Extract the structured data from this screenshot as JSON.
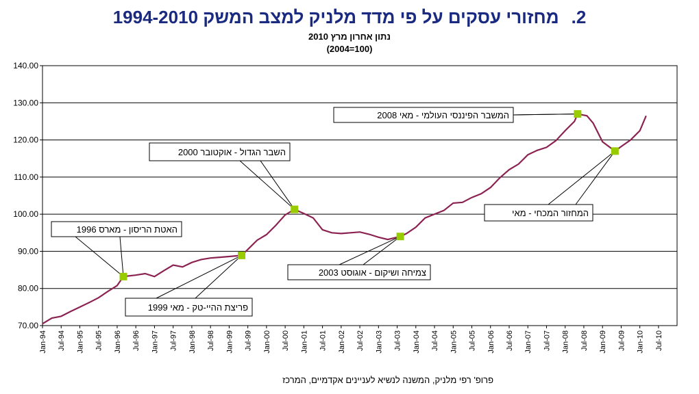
{
  "header": {
    "number": "2.",
    "title": "מחזורי עסקים על פי מדד מלניק למצב המשק 1994-2010",
    "subtitle1": "נתון אחרון מרץ 2010",
    "subtitle2": "(2004=100)"
  },
  "footer": {
    "credit": "פרופ' רפי מלניק, המשנה לנשיא לעניינים אקדמיים, המרכז"
  },
  "chart_data": {
    "type": "line",
    "ylim": [
      70,
      140
    ],
    "yticks": [
      "70.00",
      "80.00",
      "90.00",
      "100.00",
      "110.00",
      "120.00",
      "130.00",
      "140.00"
    ],
    "xticks": [
      "Jan-94",
      "Jul-94",
      "Jan-95",
      "Jul-95",
      "Jan-96",
      "Jul-96",
      "Jan-97",
      "Jul-97",
      "Jan-98",
      "Jul-98",
      "Jan-99",
      "Jul-99",
      "Jan-00",
      "Jul-00",
      "Jan-01",
      "Jul-01",
      "Jan-02",
      "Jul-02",
      "Jan-03",
      "Jul-03",
      "Jan-04",
      "Jul-04",
      "Jan-05",
      "Jul-05",
      "Jan-06",
      "Jul-06",
      "Jan-07",
      "Jul-07",
      "Jan-08",
      "Jul-08",
      "Jan-09",
      "Jul-09",
      "Jan-10",
      "Jul-10"
    ],
    "line_color": "#8b2252",
    "marker_color": "#99cc00",
    "points": [
      [
        "Jan-94",
        70.5
      ],
      [
        "Apr-94",
        72.0
      ],
      [
        "Jul-94",
        72.5
      ],
      [
        "Oct-94",
        73.8
      ],
      [
        "Jan-95",
        75.0
      ],
      [
        "Apr-95",
        76.2
      ],
      [
        "Jul-95",
        77.5
      ],
      [
        "Oct-95",
        79.2
      ],
      [
        "Jan-96",
        80.8
      ],
      [
        "Mar-96",
        83.2
      ],
      [
        "Jul-96",
        83.6
      ],
      [
        "Oct-96",
        84.0
      ],
      [
        "Jan-97",
        83.2
      ],
      [
        "Apr-97",
        84.8
      ],
      [
        "Jul-97",
        86.3
      ],
      [
        "Oct-97",
        85.8
      ],
      [
        "Jan-98",
        87.0
      ],
      [
        "Apr-98",
        87.8
      ],
      [
        "Jul-98",
        88.2
      ],
      [
        "Oct-98",
        88.4
      ],
      [
        "Jan-99",
        88.6
      ],
      [
        "May-99",
        88.9
      ],
      [
        "Jul-99",
        90.5
      ],
      [
        "Oct-99",
        93.0
      ],
      [
        "Jan-00",
        94.5
      ],
      [
        "Apr-00",
        97.0
      ],
      [
        "Jul-00",
        99.8
      ],
      [
        "Oct-00",
        101.3
      ],
      [
        "Jan-01",
        100.2
      ],
      [
        "Apr-01",
        99.0
      ],
      [
        "Jul-01",
        95.8
      ],
      [
        "Oct-01",
        95.0
      ],
      [
        "Jan-02",
        94.8
      ],
      [
        "Apr-02",
        95.0
      ],
      [
        "Jul-02",
        95.2
      ],
      [
        "Oct-02",
        94.6
      ],
      [
        "Jan-03",
        93.8
      ],
      [
        "Apr-03",
        93.2
      ],
      [
        "Aug-03",
        94.0
      ],
      [
        "Oct-03",
        94.8
      ],
      [
        "Jan-04",
        96.5
      ],
      [
        "Apr-04",
        99.0
      ],
      [
        "Jul-04",
        100.0
      ],
      [
        "Oct-04",
        101.0
      ],
      [
        "Jan-05",
        103.0
      ],
      [
        "Apr-05",
        103.2
      ],
      [
        "Jul-05",
        104.5
      ],
      [
        "Oct-05",
        105.5
      ],
      [
        "Jan-06",
        107.2
      ],
      [
        "Apr-06",
        109.8
      ],
      [
        "Jul-06",
        112.0
      ],
      [
        "Oct-06",
        113.5
      ],
      [
        "Jan-07",
        116.0
      ],
      [
        "Apr-07",
        117.2
      ],
      [
        "Jul-07",
        118.0
      ],
      [
        "Oct-07",
        119.8
      ],
      [
        "Jan-08",
        122.5
      ],
      [
        "Apr-08",
        125.0
      ],
      [
        "May-08",
        127.0
      ],
      [
        "Aug-08",
        126.5
      ],
      [
        "Oct-08",
        124.5
      ],
      [
        "Jan-09",
        119.5
      ],
      [
        "May-09",
        117.0
      ],
      [
        "Jul-09",
        118.2
      ],
      [
        "Oct-09",
        120.0
      ],
      [
        "Jan-10",
        122.5
      ],
      [
        "Mar-10",
        126.5
      ]
    ],
    "annotations": [
      {
        "label": "האטת הריסון - מארס 1996",
        "at": "Mar-96",
        "value": 83.2,
        "side": "above"
      },
      {
        "label": "פריצת ההיי-טק - מאי 1999",
        "at": "May-99",
        "value": 88.9,
        "side": "below"
      },
      {
        "label": "השבר הגדול - אוקטובר 2000",
        "at": "Oct-00",
        "value": 101.3,
        "side": "above"
      },
      {
        "label": "צמיחה ושיקום - אוגוסט 2003",
        "at": "Aug-03",
        "value": 94.0,
        "side": "below"
      },
      {
        "label": "המשבר הפיננסי העולמי - מאי 2008",
        "at": "May-08",
        "value": 127.0,
        "side": "left"
      },
      {
        "label": "המחזור המכחי - מאי",
        "at": "May-09",
        "value": 117.0,
        "side": "below"
      }
    ]
  }
}
